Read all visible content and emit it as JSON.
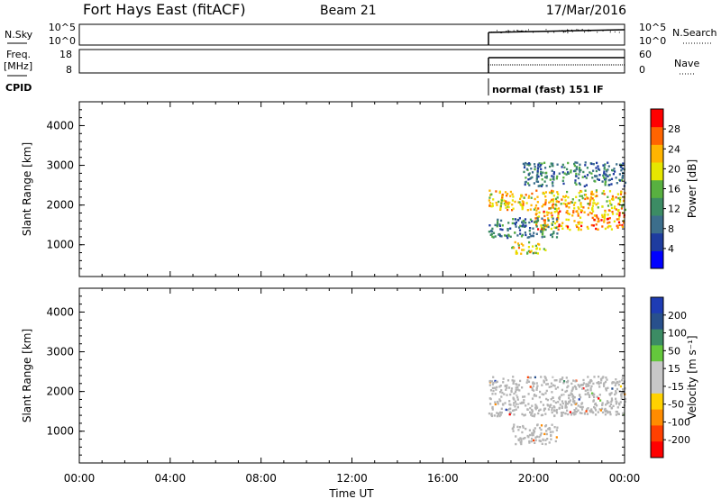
{
  "header": {
    "station": "Fort Hays East (fitACF)",
    "beam": "Beam 21",
    "date": "17/Mar/2016"
  },
  "top_panels": {
    "nsky_label": "N.Sky",
    "nsky_ticks": [
      "10^5",
      "10^0"
    ],
    "nsearch_label": "N.Search",
    "nsearch_ticks": [
      "10^5",
      "10^0"
    ],
    "freq_label": "Freq.",
    "freq_unit": "[MHz]",
    "freq_ticks": [
      "18",
      "8"
    ],
    "nave_label": "Nave",
    "nave_ticks": [
      "60",
      "0"
    ],
    "cpid_label": "CPID",
    "cpid_text": "normal (fast) 151 IF"
  },
  "colors": {
    "power_scale": [
      "#0000ff",
      "#1e3c9f",
      "#3c6e8c",
      "#3c8c64",
      "#58b040",
      "#e6e600",
      "#ffb400",
      "#ff6400",
      "#ff0000"
    ],
    "velocity_scale": [
      "#ff0000",
      "#ff4000",
      "#ff8c00",
      "#ffd200",
      "#c8c8c8",
      "#c8c8c8",
      "#64c83c",
      "#3c8c64",
      "#28508c",
      "#1e3cb4"
    ],
    "ground_scatter": "#b4b4b4"
  },
  "chart_data": [
    {
      "type": "heatmap",
      "name": "power",
      "xlabel": "",
      "ylabel": "Slant Range [km]",
      "xlim": [
        "00:00",
        "00:00"
      ],
      "x_ticks": [
        "00:00",
        "04:00",
        "08:00",
        "12:00",
        "16:00",
        "20:00",
        "00:00"
      ],
      "ylim": [
        200,
        4600
      ],
      "y_ticks": [
        1000,
        2000,
        3000,
        4000
      ],
      "colorbar": {
        "label": "Power [dB]",
        "ticks": [
          4,
          8,
          12,
          16,
          20,
          24,
          28
        ],
        "range": [
          0,
          32
        ]
      },
      "data_start": "18:00",
      "regions": [
        {
          "t": [
            18.0,
            24.0
          ],
          "range": [
            1900,
            2400
          ],
          "value": 22
        },
        {
          "t": [
            20.0,
            24.0
          ],
          "range": [
            1400,
            1900
          ],
          "value": 24
        },
        {
          "t": [
            18.0,
            21.0
          ],
          "range": [
            1200,
            1700
          ],
          "value": 10
        },
        {
          "t": [
            19.0,
            20.5
          ],
          "range": [
            800,
            1100
          ],
          "value": 20
        },
        {
          "t": [
            19.5,
            24.0
          ],
          "range": [
            2500,
            3100
          ],
          "value": 10
        }
      ]
    },
    {
      "type": "heatmap",
      "name": "velocity",
      "xlabel": "Time UT",
      "ylabel": "Slant Range [km]",
      "xlim": [
        "00:00",
        "00:00"
      ],
      "x_ticks": [
        "00:00",
        "04:00",
        "08:00",
        "12:00",
        "16:00",
        "20:00",
        "00:00"
      ],
      "ylim": [
        200,
        4600
      ],
      "y_ticks": [
        1000,
        2000,
        3000,
        4000
      ],
      "colorbar": {
        "label": "Velocity [m s⁻¹]",
        "ticks": [
          200,
          100,
          50,
          15,
          -15,
          -50,
          -100,
          -200
        ]
      },
      "data_start": "18:00",
      "regions": [
        {
          "t": [
            18.0,
            24.0
          ],
          "range": [
            1400,
            2400
          ],
          "value": 0,
          "ground_scatter": true
        },
        {
          "t": [
            19.0,
            21.0
          ],
          "range": [
            700,
            1200
          ],
          "value": 0,
          "ground_scatter": true
        }
      ]
    }
  ]
}
